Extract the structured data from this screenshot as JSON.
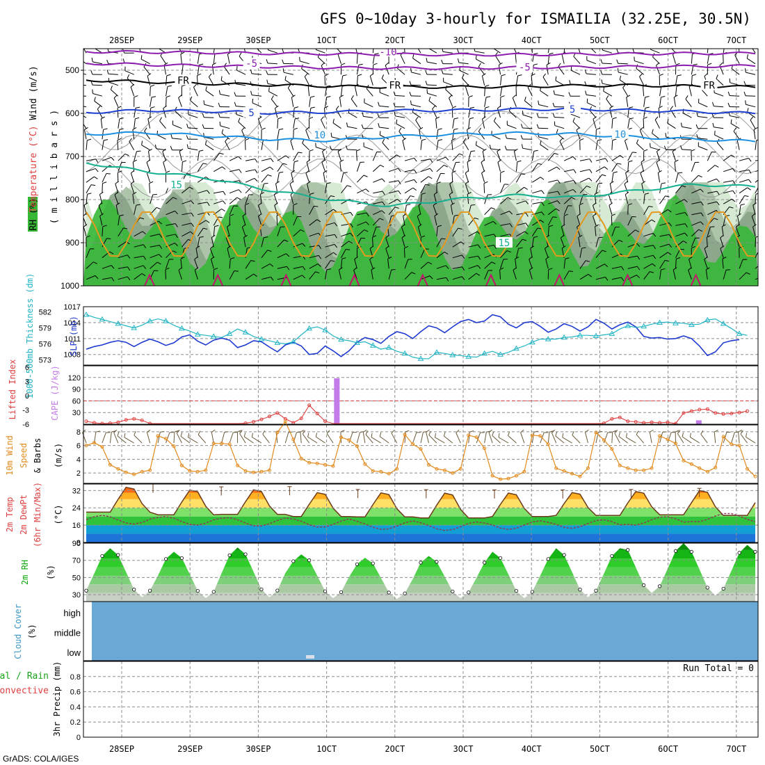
{
  "title": "GFS 0~10day 3-hourly for ISMAILIA (32.25E, 30.5N)",
  "credit": "GrADS: COLA/IGES",
  "date_labels": [
    "28SEP",
    "29SEP",
    "30SEP",
    "1OCT",
    "2OCT",
    "3OCT",
    "4OCT",
    "5OCT",
    "6OCT",
    "7OCT"
  ],
  "colors": {
    "rh_green": "#36b836",
    "rh_light": "#d2e8cf",
    "rh_mid": "#a9bfa5",
    "rh_dark": "#8aa489",
    "slp": "#1f3ad0",
    "thickness": "#22b5c5",
    "cape": "#c27be8",
    "lifted": "#e04040",
    "wind10": "#e38a1c",
    "cloud": "#6aa9d6",
    "rh2m": "#0aa80a"
  },
  "chart_data": [
    {
      "panel": "upper-air",
      "type": "contour",
      "ylabel_parts": [
        "RH (%)",
        "Temperature (°C)",
        "Wind (m/s)"
      ],
      "ylabel_unit": "( m i l l i b a r s )",
      "yticks": [
        500,
        600,
        700,
        800,
        900,
        1000
      ],
      "ylim": [
        450,
        1000
      ],
      "isotherms": [
        {
          "label": "-10",
          "pressure": [
            457,
            458,
            459,
            461,
            462,
            463,
            464,
            464,
            463,
            462,
            461,
            461
          ]
        },
        {
          "label": "-5",
          "pressure": [
            484,
            487,
            490,
            492,
            494,
            495,
            495,
            494,
            493,
            492,
            491,
            490
          ]
        },
        {
          "label": "FR",
          "pressure": [
            523,
            527,
            531,
            534,
            537,
            539,
            539,
            538,
            536,
            535,
            537,
            539
          ]
        },
        {
          "label": "5",
          "pressure": [
            598,
            593,
            595,
            599,
            597,
            594,
            593,
            591,
            590,
            593,
            596,
            600
          ]
        },
        {
          "label": "10",
          "pressure": [
            648,
            645,
            652,
            660,
            663,
            654,
            649,
            646,
            648,
            655,
            660,
            665
          ]
        },
        {
          "label": "15",
          "pressure": [
            715,
            735,
            750,
            778,
            800,
            815,
            800,
            790,
            795,
            780,
            765,
            770
          ]
        }
      ],
      "label_positions": [
        {
          "label": "-10",
          "pressure": 457,
          "x_day": 3.9
        },
        {
          "label": "-5",
          "pressure": 484,
          "x_day": 1.9
        },
        {
          "label": "-5",
          "pressure": 493,
          "x_day": 5.9
        },
        {
          "label": "FR",
          "pressure": 523,
          "x_day": 0.9
        },
        {
          "label": "FR",
          "pressure": 535,
          "x_day": 4.0
        },
        {
          "label": "FR",
          "pressure": 535,
          "x_day": 8.6
        },
        {
          "label": "5",
          "pressure": 598,
          "x_day": 1.9
        },
        {
          "label": "5",
          "pressure": 590,
          "x_day": 6.6
        },
        {
          "label": "10",
          "pressure": 650,
          "x_day": 2.9
        },
        {
          "label": "10",
          "pressure": 648,
          "x_day": 7.3
        },
        {
          "label": "15",
          "pressure": 765,
          "x_day": 0.8
        },
        {
          "label": "15",
          "pressure": 900,
          "x_day": 5.6
        }
      ]
    },
    {
      "panel": "slp-thickness",
      "type": "line",
      "ylabel_left": "1000-500mb Thickness (dm)",
      "ylabel_right": "SLP (mb)",
      "left_ticks": [
        573,
        576,
        579,
        582
      ],
      "right_ticks": [
        1008,
        1011,
        1014,
        1017
      ],
      "left_ylim": [
        572,
        583
      ],
      "right_ylim": [
        1006,
        1017
      ],
      "series": [
        {
          "name": "SLP (mb)",
          "axis": "right",
          "values": [
            1009.0,
            1009.5,
            1009.8,
            1010.3,
            1010.6,
            1010.3,
            1009.5,
            1010.3,
            1010.9,
            1010.4,
            1009.7,
            1010.2,
            1011.3,
            1011.7,
            1010.5,
            1009.8,
            1010.7,
            1011.1,
            1010.7,
            1009.3,
            1009.8,
            1010.6,
            1010.4,
            1009.4,
            1008.5,
            1009.8,
            1010.3,
            1009.6,
            1008.0,
            1008.2,
            1009.6,
            1008.7,
            1007.6,
            1008.7,
            1010.3,
            1011.2,
            1010.8,
            1010.1,
            1011.4,
            1012.3,
            1011.9,
            1011.0,
            1012.3,
            1013.4,
            1013.0,
            1012.1,
            1013.2,
            1014.2,
            1014.6,
            1014.0,
            1014.3,
            1015.5,
            1015.1,
            1013.7,
            1013.0,
            1014.0,
            1014.2,
            1013.3,
            1012.2,
            1012.8,
            1013.8,
            1013.3,
            1012.4,
            1013.2,
            1014.6,
            1013.9,
            1012.8,
            1013.6,
            1014.1,
            1013.2,
            1011.4,
            1011.1,
            1011.2,
            1010.9,
            1011.0,
            1011.5,
            1011.0,
            1009.6,
            1007.8,
            1008.5,
            1010.2,
            1010.6,
            1010.8
          ]
        },
        {
          "name": "1000-500mb Thickness (dm)",
          "axis": "left",
          "values": [
            581.5,
            581.0,
            580.6,
            580.2,
            579.8,
            579.4,
            579.0,
            579.5,
            580.3,
            580.7,
            580.3,
            579.5,
            578.9,
            578.4,
            577.8,
            577.6,
            577.4,
            577.2,
            577.9,
            578.8,
            578.2,
            577.4,
            576.9,
            576.6,
            576.2,
            576.0,
            576.4,
            577.7,
            578.9,
            579.2,
            578.6,
            577.5,
            576.8,
            576.6,
            576.2,
            576.4,
            575.7,
            575.0,
            575.3,
            574.6,
            574.2,
            573.5,
            573.2,
            573.2,
            574.4,
            574.2,
            573.9,
            573.8,
            573.6,
            573.5,
            574.2,
            574.6,
            574.0,
            574.4,
            575.1,
            575.6,
            576.3,
            576.9,
            576.9,
            576.9,
            577.2,
            577.3,
            577.6,
            577.6,
            577.5,
            577.7,
            577.9,
            578.8,
            579.4,
            579.1,
            579.3,
            579.7,
            580.0,
            580.1,
            579.9,
            579.9,
            579.6,
            579.7,
            580.5,
            580.7,
            579.8,
            578.9,
            577.9,
            577.6
          ]
        }
      ]
    },
    {
      "panel": "cape-li",
      "type": "bar+line",
      "ylabel_left": "Lifted Index",
      "ylabel_right": "CAPE (J/kg)",
      "li_ticks": [
        "6",
        "3",
        "0",
        "-3",
        "-6"
      ],
      "li_ticks_display": [
        "-6",
        "-3",
        "0",
        "3",
        "6"
      ],
      "cape_ticks": [
        30,
        60,
        90,
        120
      ],
      "cape_ylim": [
        0,
        150
      ],
      "cape": [
        {
          "x_day": 3.15,
          "value": 118
        },
        {
          "x_day": 3.6,
          "value": 2
        },
        {
          "x_day": 8.45,
          "value": 10
        }
      ],
      "lifted_index": [
        5.4,
        5.7,
        5.9,
        5.8,
        5.6,
        5.1,
        4.9,
        5.2,
        5.9,
        6.0,
        6.0,
        6.0,
        6.0,
        6.0,
        6.0,
        6.0,
        6.0,
        6.0,
        6.0,
        6.0,
        5.8,
        5.5,
        5.0,
        4.4,
        3.7,
        4.9,
        5.7,
        4.8,
        2.1,
        3.8,
        5.4,
        6.0,
        6.0,
        6.0,
        6.0,
        6.0,
        6.0,
        6.0,
        6.0,
        6.0,
        6.0,
        6.0,
        6.0,
        6.0,
        6.0,
        6.0,
        6.0,
        6.0,
        6.0,
        6.0,
        6.0,
        6.0,
        6.0,
        6.0,
        6.0,
        6.0,
        6.0,
        6.0,
        6.0,
        6.0,
        6.0,
        6.0,
        6.0,
        6.0,
        6.0,
        5.8,
        4.9,
        4.6,
        5.4,
        5.5,
        5.7,
        5.6,
        5.7,
        5.6,
        5.9,
        3.7,
        3.3,
        3.0,
        2.9,
        3.7,
        3.9,
        3.8,
        3.6,
        3.3
      ]
    },
    {
      "panel": "wind10m",
      "type": "line",
      "ylabel": "10m Wind Speed & Barbs",
      "yunit": "(m/s)",
      "yticks": [
        2,
        4,
        6,
        8
      ],
      "ylim": [
        0.5,
        9
      ],
      "values": [
        6.0,
        6.4,
        5.8,
        3.2,
        2.6,
        2.1,
        1.8,
        2.2,
        2.4,
        7.4,
        7.0,
        5.9,
        3.1,
        2.3,
        2.2,
        2.4,
        6.3,
        6.3,
        6.2,
        3.1,
        2.3,
        2.1,
        2.2,
        2.4,
        7.9,
        9.5,
        6.9,
        4.1,
        3.5,
        3.4,
        3.2,
        3.0,
        7.2,
        6.8,
        5.9,
        3.3,
        2.3,
        2.2,
        1.9,
        2.6,
        7.6,
        6.2,
        5.5,
        3.2,
        2.6,
        2.4,
        2.0,
        2.6,
        7.5,
        7.2,
        5.6,
        1.6,
        1.1,
        1.2,
        1.6,
        2.2,
        7.5,
        7.4,
        6.2,
        2.7,
        2.3,
        1.9,
        1.5,
        2.7,
        7.9,
        6.8,
        5.5,
        3.1,
        2.7,
        2.4,
        2.4,
        2.7,
        7.4,
        6.9,
        6.3,
        3.8,
        3.3,
        2.7,
        2.2,
        2.8,
        7.3,
        6.2,
        6.0,
        2.6,
        1.5
      ]
    },
    {
      "panel": "temperature",
      "type": "area+line",
      "ylabel": "2m Temp 2m DewPt (6hr Min/Max)",
      "yunit": "(°C)",
      "yticks": [
        8,
        16,
        24,
        32
      ],
      "ylim": [
        8,
        35
      ],
      "days_max": [
        34.0,
        32.7,
        32.8,
        31.5,
        31.4,
        31.3,
        31.3,
        31.5,
        32.0,
        32.5
      ],
      "days_min": [
        22.0,
        20.8,
        21.0,
        20.0,
        19.8,
        19.3,
        20.0,
        20.5,
        20.8,
        20.5
      ],
      "dewpt_base": [
        18.5,
        18.0,
        17.5,
        17.0,
        16.0,
        15.5,
        16.0,
        16.5,
        18.0,
        19.5
      ]
    },
    {
      "panel": "rh2m",
      "type": "area",
      "ylabel": "2m RH",
      "yunit": "(%)",
      "yticks": [
        30,
        50,
        70,
        90
      ],
      "ylim": [
        22,
        90
      ],
      "days_peak": [
        84,
        80,
        85,
        77,
        73,
        75,
        80,
        84,
        90,
        88
      ],
      "days_trough": [
        27,
        26,
        27,
        26,
        25,
        26,
        26,
        27,
        32,
        29
      ]
    },
    {
      "panel": "cloud",
      "type": "band",
      "ylabel": "Cloud Cover",
      "yunit": "(%)",
      "levels": [
        "high",
        "middle",
        "low"
      ]
    },
    {
      "panel": "precip",
      "type": "bar",
      "ylabel": "3hr Precip (mm)",
      "ylabel_left_1": "Total / Rain",
      "ylabel_left_2": "Convective",
      "yticks": [
        0,
        0.2,
        0.4,
        0.6,
        0.8
      ],
      "yticks_display": [
        "0",
        "0.2",
        "0.4",
        "0.6",
        "0.8"
      ],
      "ylim": [
        0,
        1
      ],
      "run_total": "Run Total = 0"
    }
  ]
}
